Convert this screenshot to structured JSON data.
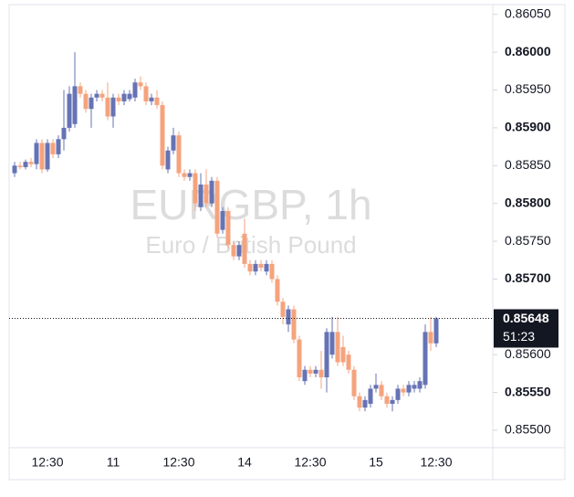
{
  "chart_data": {
    "type": "candlestick",
    "title": "EURGBP, 1h",
    "subtitle": "Euro / British Pound",
    "up_color": "#6673b4",
    "down_color": "#f5a37d",
    "categories": [
      null,
      null,
      null,
      null,
      null,
      null,
      "12:30",
      null,
      null,
      null,
      null,
      null,
      null,
      null,
      null,
      null,
      null,
      null,
      "11",
      null,
      null,
      null,
      null,
      null,
      null,
      null,
      null,
      null,
      null,
      null,
      "12:30",
      null,
      null,
      null,
      null,
      null,
      null,
      null,
      null,
      null,
      null,
      null,
      "14",
      null,
      null,
      null,
      null,
      null,
      null,
      null,
      null,
      null,
      null,
      null,
      "12:30",
      null,
      null,
      null,
      null,
      null,
      null,
      null,
      null,
      null,
      null,
      null,
      "15",
      null,
      null,
      null,
      null,
      null,
      null,
      null,
      null,
      null,
      null,
      "12:30"
    ],
    "open": [
      0.8584,
      0.8585,
      0.85848,
      0.85855,
      0.85852,
      0.8588,
      0.85845,
      0.8588,
      0.85865,
      0.85885,
      0.859,
      0.85905,
      0.85955,
      0.85945,
      0.85925,
      0.8594,
      0.85945,
      0.8594,
      0.85915,
      0.8594,
      0.85935,
      0.85938,
      0.8594,
      0.8596,
      0.85955,
      0.85935,
      0.8594,
      0.8593,
      0.85845,
      0.8587,
      0.8589,
      0.8584,
      0.85835,
      0.8584,
      0.85795,
      0.85825,
      0.858,
      0.8583,
      0.85765,
      0.8579,
      0.85745,
      0.8573,
      0.8576,
      0.8572,
      0.8571,
      0.8572,
      0.8571,
      0.8572,
      0.857,
      0.8567,
      0.8564,
      0.8566,
      0.8562,
      0.85565,
      0.8558,
      0.85575,
      0.8558,
      0.8557,
      0.856,
      0.8563,
      0.8561,
      0.856,
      0.8558,
      0.85545,
      0.8553,
      0.85535,
      0.85555,
      0.8556,
      0.85545,
      0.85535,
      0.8554,
      0.85555,
      0.8555,
      0.85555,
      0.85555,
      0.8556,
      0.8563,
      0.85615
    ],
    "high": [
      0.85855,
      0.85855,
      0.85858,
      0.8586,
      0.85885,
      0.85885,
      0.85885,
      0.85885,
      0.8589,
      0.8595,
      0.85955,
      0.86,
      0.8596,
      0.8595,
      0.85945,
      0.8595,
      0.8595,
      0.8596,
      0.85945,
      0.85945,
      0.8595,
      0.8595,
      0.85965,
      0.85968,
      0.8596,
      0.85945,
      0.8595,
      0.85935,
      0.85875,
      0.859,
      0.85895,
      0.85845,
      0.85845,
      0.85845,
      0.8584,
      0.85845,
      0.85835,
      0.85835,
      0.85795,
      0.85795,
      0.8575,
      0.8575,
      0.8578,
      0.85725,
      0.85725,
      0.85725,
      0.85725,
      0.85725,
      0.85705,
      0.85675,
      0.85665,
      0.85665,
      0.85625,
      0.85585,
      0.85585,
      0.85585,
      0.85605,
      0.85635,
      0.8565,
      0.8565,
      0.85625,
      0.85605,
      0.85585,
      0.8555,
      0.85545,
      0.8556,
      0.85575,
      0.85565,
      0.8555,
      0.85545,
      0.8556,
      0.8556,
      0.85565,
      0.85565,
      0.8557,
      0.8564,
      0.8565,
      0.8565
    ],
    "low": [
      0.85835,
      0.85845,
      0.85845,
      0.85848,
      0.85845,
      0.8584,
      0.85842,
      0.8586,
      0.8586,
      0.8587,
      0.85895,
      0.859,
      0.8594,
      0.8592,
      0.859,
      0.85935,
      0.85935,
      0.8591,
      0.859,
      0.8593,
      0.8593,
      0.85935,
      0.85935,
      0.8595,
      0.8593,
      0.8593,
      0.85925,
      0.85845,
      0.8584,
      0.85865,
      0.85835,
      0.8583,
      0.8583,
      0.8579,
      0.8579,
      0.85795,
      0.85795,
      0.85755,
      0.8576,
      0.8574,
      0.85725,
      0.85725,
      0.85715,
      0.85705,
      0.85705,
      0.8571,
      0.85705,
      0.85695,
      0.85665,
      0.8564,
      0.8563,
      0.85615,
      0.85565,
      0.8556,
      0.8557,
      0.8557,
      0.85555,
      0.8555,
      0.85595,
      0.85585,
      0.85585,
      0.85575,
      0.8554,
      0.85525,
      0.85525,
      0.8553,
      0.8555,
      0.8554,
      0.8553,
      0.85525,
      0.85535,
      0.85545,
      0.85545,
      0.8555,
      0.8555,
      0.85555,
      0.85605,
      0.8561
    ],
    "close": [
      0.8585,
      0.85848,
      0.85855,
      0.85852,
      0.8588,
      0.85845,
      0.8588,
      0.85865,
      0.85885,
      0.859,
      0.85945,
      0.85955,
      0.85945,
      0.85925,
      0.8594,
      0.85945,
      0.8594,
      0.85915,
      0.8594,
      0.85935,
      0.85945,
      0.85945,
      0.8596,
      0.85955,
      0.85935,
      0.8594,
      0.8593,
      0.8585,
      0.8587,
      0.8589,
      0.8584,
      0.85835,
      0.8584,
      0.858,
      0.85825,
      0.858,
      0.8583,
      0.8576,
      0.8579,
      0.85745,
      0.8573,
      0.85745,
      0.8572,
      0.8571,
      0.8572,
      0.85715,
      0.8572,
      0.857,
      0.8567,
      0.8565,
      0.8566,
      0.8562,
      0.8557,
      0.8558,
      0.85575,
      0.8558,
      0.8557,
      0.8563,
      0.8563,
      0.8559,
      0.8559,
      0.8558,
      0.85545,
      0.8553,
      0.8554,
      0.85555,
      0.8556,
      0.85545,
      0.85535,
      0.8554,
      0.85555,
      0.8555,
      0.8556,
      0.8556,
      0.85565,
      0.8563,
      0.85615,
      0.85648
    ],
    "ylim": [
      0.85477,
      0.86063
    ],
    "yticks": [
      {
        "value": 0.8605,
        "label": "0.86050"
      },
      {
        "value": 0.86,
        "label": "0.86000"
      },
      {
        "value": 0.8595,
        "label": "0.85950"
      },
      {
        "value": 0.859,
        "label": "0.85900"
      },
      {
        "value": 0.8585,
        "label": "0.85850"
      },
      {
        "value": 0.858,
        "label": "0.85800"
      },
      {
        "value": 0.8575,
        "label": "0.85750"
      },
      {
        "value": 0.857,
        "label": "0.85700"
      },
      {
        "value": 0.856,
        "label": "0.85600"
      },
      {
        "value": 0.8555,
        "label": "0.85550"
      },
      {
        "value": 0.855,
        "label": "0.85500"
      }
    ],
    "last_price": 0.85648,
    "countdown": "51:23"
  }
}
